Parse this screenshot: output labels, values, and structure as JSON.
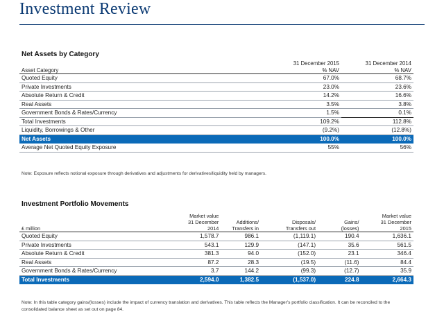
{
  "page": {
    "title": "Investment Review"
  },
  "net_assets": {
    "section_title": "Net Assets by Category",
    "headers": {
      "col1_line1": "31 December 2015",
      "col2_line1": "31 December 2014",
      "label": "Asset Category",
      "col1_line2": "% NAV",
      "col2_line2": "% NAV"
    },
    "rows": [
      {
        "label": "Quoted Equity",
        "v2015": "67.0%",
        "v2014": "68.7%"
      },
      {
        "label": "Private Investments",
        "v2015": "23.0%",
        "v2014": "23.6%"
      },
      {
        "label": "Absolute Return & Credit",
        "v2015": "14.2%",
        "v2014": "16.6%"
      },
      {
        "label": "Real Assets",
        "v2015": "3.5%",
        "v2014": "3.8%"
      },
      {
        "label": "Government Bonds & Rates/Currency",
        "v2015": "1.5%",
        "v2014": "0.1%"
      },
      {
        "label": "Total Investments",
        "v2015": "109.2%",
        "v2014": "112.8%"
      },
      {
        "label": "Liquidity, Borrowings & Other",
        "v2015": "(9.2%)",
        "v2014": "(12.8%)"
      }
    ],
    "total": {
      "label": "Net Assets",
      "v2015": "100.0%",
      "v2014": "100.0%"
    },
    "after": {
      "label": "Average Net Quoted Equity Exposure",
      "v2015": "55%",
      "v2014": "56%"
    },
    "note": "Note: Exposure reflects notional exposure through derivatives and adjustments for derivatives/liquidity held by managers."
  },
  "movements": {
    "section_title": "Investment Portfolio Movements",
    "headers": {
      "label": "£ million",
      "c1": [
        "Market value",
        "31 December",
        "2014"
      ],
      "c2": [
        "",
        "Additions/",
        "Transfers in"
      ],
      "c3": [
        "",
        "Disposals/",
        "Transfers out"
      ],
      "c4": [
        "",
        "Gains/",
        "(losses)"
      ],
      "c5": [
        "Market value",
        "31 December",
        "2015"
      ]
    },
    "rows": [
      {
        "label": "Quoted Equity",
        "mv2014": "1,578.7",
        "additions": "986.1",
        "disposals": "(1,119.1)",
        "gains": "190.4",
        "mv2015": "1,636.1"
      },
      {
        "label": "Private Investments",
        "mv2014": "543.1",
        "additions": "129.9",
        "disposals": "(147.1)",
        "gains": "35.6",
        "mv2015": "561.5"
      },
      {
        "label": "Absolute Return & Credit",
        "mv2014": "381.3",
        "additions": "94.0",
        "disposals": "(152.0)",
        "gains": "23.1",
        "mv2015": "346.4"
      },
      {
        "label": "Real Assets",
        "mv2014": "87.2",
        "additions": "28.3",
        "disposals": "(19.5)",
        "gains": "(11.6)",
        "mv2015": "84.4"
      },
      {
        "label": "Government Bonds & Rates/Currency",
        "mv2014": "3.7",
        "additions": "144.2",
        "disposals": "(99.3)",
        "gains": "(12.7)",
        "mv2015": "35.9"
      }
    ],
    "total": {
      "label": "Total Investments",
      "mv2014": "2,594.0",
      "additions": "1,382.5",
      "disposals": "(1,537.0)",
      "gains": "224.8",
      "mv2015": "2,664.3"
    },
    "note": "Note: In this table category gains/(losses) include the impact of currency translation and derivatives. This table reflects the Manager's portfolio classification. It can be reconciled to the consolidated balance sheet as set out on page 84."
  }
}
